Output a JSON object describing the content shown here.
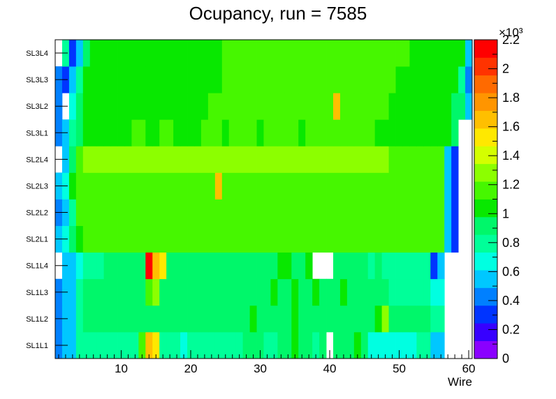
{
  "chart_data": {
    "type": "heatmap",
    "title": "Ocupancy, run = 7585",
    "xlabel": "Wire",
    "ylabel": "",
    "xlim": [
      0.5,
      60.5
    ],
    "x_ticks": [
      "10",
      "20",
      "30",
      "40",
      "50",
      "60"
    ],
    "y_categories": [
      "SL1L1",
      "SL1L2",
      "SL1L3",
      "SL1L4",
      "SL2L1",
      "SL2L2",
      "SL2L3",
      "SL2L4",
      "SL3L1",
      "SL3L2",
      "SL3L3",
      "SL3L4"
    ],
    "z_range": [
      0,
      2200
    ],
    "z_multiplier_label": "×10³",
    "z_ticks": [
      "0",
      "0.2",
      "0.4",
      "0.6",
      "0.8",
      "1",
      "1.2",
      "1.4",
      "1.6",
      "1.8",
      "2",
      "2.2"
    ],
    "palette": [
      "#8a00ff",
      "#3700ff",
      "#0034ff",
      "#0080ff",
      "#00c7ff",
      "#00ffe1",
      "#00ff99",
      "#00f76a",
      "#08e800",
      "#46f700",
      "#8cff00",
      "#d4ff00",
      "#ffe800",
      "#ffbf00",
      "#ff9500",
      "#ff6a00",
      "#ff3300",
      "#ff0000"
    ],
    "rows": {
      "SL1L1": [
        400,
        500,
        600,
        800,
        800,
        800,
        800,
        800,
        800,
        800,
        800,
        800,
        1100,
        1600,
        1500,
        800,
        800,
        800,
        700,
        800,
        800,
        800,
        800,
        800,
        800,
        800,
        800,
        900,
        900,
        900,
        800,
        800,
        900,
        900,
        1000,
        900,
        900,
        800,
        900,
        0,
        900,
        900,
        900,
        1000,
        900,
        700,
        700,
        700,
        700,
        700,
        700,
        700,
        800,
        800,
        600,
        500,
        0,
        0,
        0,
        0
      ],
      "SL1L2": [
        400,
        500,
        600,
        800,
        900,
        900,
        900,
        900,
        900,
        900,
        900,
        900,
        900,
        900,
        900,
        900,
        900,
        900,
        900,
        900,
        900,
        900,
        900,
        900,
        900,
        900,
        900,
        900,
        1000,
        900,
        900,
        900,
        900,
        900,
        1000,
        900,
        900,
        900,
        900,
        900,
        900,
        900,
        900,
        900,
        900,
        900,
        1000,
        1300,
        900,
        900,
        900,
        900,
        900,
        900,
        800,
        800,
        0,
        0,
        0,
        0
      ],
      "SL1L3": [
        400,
        500,
        600,
        800,
        900,
        900,
        900,
        900,
        900,
        900,
        900,
        900,
        900,
        1200,
        1300,
        900,
        900,
        900,
        900,
        900,
        900,
        900,
        900,
        900,
        900,
        900,
        900,
        900,
        900,
        900,
        900,
        1000,
        900,
        900,
        1000,
        900,
        900,
        1000,
        900,
        900,
        900,
        1000,
        900,
        900,
        900,
        900,
        900,
        900,
        800,
        800,
        800,
        800,
        800,
        800,
        700,
        700,
        0,
        0,
        0,
        0
      ],
      "SL1L4": [
        0,
        500,
        600,
        700,
        800,
        800,
        800,
        900,
        900,
        900,
        900,
        900,
        900,
        2100,
        1700,
        1500,
        900,
        900,
        900,
        900,
        900,
        900,
        900,
        900,
        900,
        900,
        900,
        900,
        900,
        900,
        900,
        900,
        1000,
        1000,
        900,
        900,
        1000,
        0,
        0,
        0,
        900,
        900,
        900,
        900,
        900,
        800,
        900,
        800,
        800,
        800,
        800,
        800,
        800,
        800,
        300,
        500,
        0,
        0,
        0,
        0
      ],
      "SL2L1": [
        600,
        700,
        900,
        1000,
        1100,
        1100,
        1100,
        1100,
        1100,
        1100,
        1100,
        1100,
        1100,
        1100,
        1100,
        1100,
        1100,
        1100,
        1100,
        1100,
        1100,
        1100,
        1100,
        1100,
        1100,
        1100,
        1100,
        1100,
        1100,
        1100,
        1100,
        1100,
        1100,
        1100,
        1100,
        1100,
        1100,
        1100,
        1100,
        1100,
        1100,
        1100,
        1100,
        1100,
        1100,
        1100,
        1100,
        1100,
        1100,
        1100,
        1100,
        1100,
        1100,
        1100,
        1100,
        1100,
        600,
        300,
        0,
        0
      ],
      "SL2L2": [
        400,
        500,
        800,
        1100,
        1200,
        1200,
        1200,
        1200,
        1200,
        1200,
        1200,
        1200,
        1200,
        1200,
        1200,
        1200,
        1200,
        1200,
        1200,
        1200,
        1200,
        1200,
        1200,
        1200,
        1200,
        1200,
        1200,
        1200,
        1200,
        1200,
        1200,
        1200,
        1200,
        1200,
        1200,
        1200,
        1200,
        1200,
        1200,
        1200,
        1200,
        1200,
        1200,
        1200,
        1200,
        1200,
        1200,
        1200,
        1200,
        1200,
        1200,
        1200,
        1200,
        1200,
        1200,
        1100,
        600,
        300,
        0,
        0
      ],
      "SL2L3": [
        600,
        700,
        1000,
        1200,
        1200,
        1200,
        1200,
        1200,
        1200,
        1200,
        1200,
        1200,
        1200,
        1200,
        1200,
        1200,
        1200,
        1200,
        1200,
        1200,
        1200,
        1200,
        1200,
        1700,
        1200,
        1200,
        1200,
        1200,
        1200,
        1200,
        1200,
        1200,
        1200,
        1200,
        1200,
        1200,
        1200,
        1200,
        1200,
        1200,
        1200,
        1200,
        1200,
        1200,
        1200,
        1200,
        1200,
        1200,
        1200,
        1200,
        1200,
        1200,
        1200,
        1200,
        1200,
        1100,
        600,
        300,
        0,
        0
      ],
      "SL2L4": [
        0,
        600,
        900,
        1200,
        1300,
        1300,
        1300,
        1300,
        1300,
        1300,
        1300,
        1300,
        1300,
        1300,
        1300,
        1300,
        1300,
        1300,
        1300,
        1300,
        1300,
        1300,
        1300,
        1300,
        1300,
        1300,
        1300,
        1300,
        1300,
        1300,
        1300,
        1300,
        1300,
        1300,
        1300,
        1300,
        1300,
        1300,
        1300,
        1300,
        1300,
        1300,
        1300,
        1300,
        1300,
        1300,
        1300,
        1300,
        1200,
        1200,
        1200,
        1200,
        1200,
        1200,
        1200,
        1100,
        600,
        300,
        0,
        0
      ],
      "SL3L1": [
        400,
        500,
        800,
        900,
        1000,
        1000,
        1000,
        1000,
        1000,
        1000,
        1000,
        1100,
        1100,
        1000,
        1000,
        1100,
        1100,
        1000,
        1000,
        1000,
        1000,
        1100,
        1100,
        1100,
        1000,
        1100,
        1100,
        1100,
        1100,
        1000,
        1100,
        1100,
        1100,
        1100,
        1100,
        1000,
        1100,
        1100,
        1100,
        1100,
        1100,
        1100,
        1100,
        1100,
        1100,
        1100,
        1000,
        1000,
        1000,
        1000,
        1000,
        1000,
        1000,
        1000,
        1000,
        1000,
        1000,
        900,
        0,
        0
      ],
      "SL3L2": [
        400,
        0,
        700,
        900,
        1000,
        1000,
        1000,
        1000,
        1000,
        1000,
        1000,
        1000,
        1000,
        1000,
        1000,
        1000,
        1000,
        1000,
        1000,
        1000,
        1000,
        1000,
        1100,
        1100,
        1100,
        1100,
        1100,
        1100,
        1100,
        1100,
        1100,
        1100,
        1100,
        1100,
        1100,
        1100,
        1100,
        1100,
        1100,
        1100,
        1700,
        1100,
        1100,
        1100,
        1100,
        1100,
        1100,
        1100,
        1000,
        1000,
        1000,
        1000,
        1000,
        1000,
        1000,
        1000,
        1000,
        900,
        900,
        500
      ],
      "SL3L3": [
        400,
        300,
        500,
        800,
        1000,
        1000,
        1000,
        1000,
        1000,
        1000,
        1000,
        1000,
        1000,
        1000,
        1000,
        1000,
        1000,
        1000,
        1000,
        1000,
        1000,
        1000,
        1000,
        1000,
        1100,
        1100,
        1100,
        1100,
        1100,
        1100,
        1100,
        1100,
        1100,
        1100,
        1100,
        1100,
        1100,
        1100,
        1100,
        1100,
        1100,
        1100,
        1100,
        1100,
        1100,
        1100,
        1100,
        1100,
        1100,
        1000,
        1000,
        1000,
        1000,
        1000,
        1000,
        1000,
        1000,
        1000,
        800,
        400
      ],
      "SL3L4": [
        0,
        800,
        300,
        500,
        900,
        1000,
        1000,
        1000,
        1000,
        1000,
        1000,
        1000,
        1000,
        1000,
        1000,
        1000,
        1000,
        1000,
        1000,
        1000,
        1000,
        1000,
        1000,
        1000,
        1100,
        1100,
        1100,
        1100,
        1100,
        1100,
        1100,
        1100,
        1100,
        1100,
        1100,
        1100,
        1100,
        1100,
        1100,
        1100,
        1100,
        1100,
        1100,
        1100,
        1100,
        1100,
        1100,
        1100,
        1100,
        1100,
        1100,
        1000,
        1000,
        1000,
        1000,
        1000,
        1000,
        1000,
        1000,
        500
      ]
    }
  }
}
